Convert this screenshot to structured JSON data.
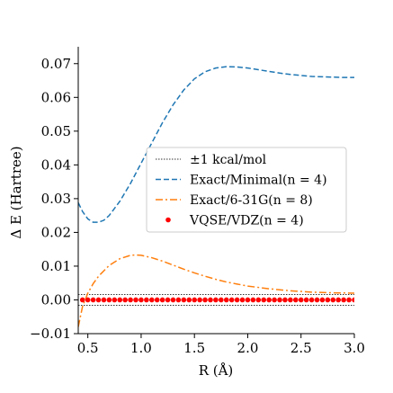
{
  "chart_data": {
    "type": "line",
    "xlabel": "R (Å)",
    "ylabel": "Δ E (Hartree)",
    "xlim": [
      0.41,
      3.0
    ],
    "ylim": [
      -0.01,
      0.075
    ],
    "xticks": [
      0.5,
      1.0,
      1.5,
      2.0,
      2.5,
      3.0
    ],
    "xtick_labels": [
      "0.5",
      "1.0",
      "1.5",
      "2.0",
      "2.5",
      "3.0"
    ],
    "yticks": [
      -0.01,
      0.0,
      0.01,
      0.02,
      0.03,
      0.04,
      0.05,
      0.06,
      0.07
    ],
    "ytick_labels": [
      "−0.01",
      "0.00",
      "0.01",
      "0.02",
      "0.03",
      "0.04",
      "0.05",
      "0.06",
      "0.07"
    ],
    "grid": false,
    "legend_position": "center-right",
    "series": [
      {
        "name": "±1 kcal/mol",
        "style": "dotted",
        "color": "#333333",
        "lines": [
          0.0016,
          -0.0016
        ],
        "x": [
          0.41,
          3.0
        ]
      },
      {
        "name": "Exact/Minimal(n = 4)",
        "style": "dashed",
        "color": "#1f77b4",
        "x": [
          0.41,
          0.45,
          0.5,
          0.55,
          0.6,
          0.65,
          0.7,
          0.8,
          0.9,
          1.0,
          1.1,
          1.2,
          1.3,
          1.4,
          1.5,
          1.6,
          1.7,
          1.8,
          1.9,
          2.0,
          2.1,
          2.2,
          2.3,
          2.4,
          2.5,
          2.6,
          2.7,
          2.8,
          2.9,
          3.0
        ],
        "y": [
          0.0288,
          0.0262,
          0.024,
          0.023,
          0.023,
          0.0236,
          0.025,
          0.0292,
          0.0345,
          0.0405,
          0.0465,
          0.0525,
          0.0578,
          0.0622,
          0.0655,
          0.0676,
          0.0687,
          0.0691,
          0.069,
          0.0687,
          0.0682,
          0.0677,
          0.0672,
          0.0668,
          0.0665,
          0.0662,
          0.0661,
          0.066,
          0.0659,
          0.0659
        ]
      },
      {
        "name": "Exact/6-31G(n = 8)",
        "style": "dashdot",
        "color": "#ff7f0e",
        "x": [
          0.41,
          0.45,
          0.5,
          0.55,
          0.6,
          0.7,
          0.8,
          0.9,
          0.95,
          1.0,
          1.1,
          1.2,
          1.3,
          1.4,
          1.5,
          1.6,
          1.7,
          1.8,
          1.9,
          2.0,
          2.2,
          2.4,
          2.6,
          2.8,
          3.0
        ],
        "y": [
          -0.008,
          -0.002,
          0.002,
          0.0048,
          0.007,
          0.0102,
          0.0122,
          0.0132,
          0.0133,
          0.0132,
          0.0125,
          0.0115,
          0.0103,
          0.0091,
          0.008,
          0.007,
          0.0061,
          0.0053,
          0.0047,
          0.0041,
          0.0033,
          0.0027,
          0.0023,
          0.0021,
          0.002
        ]
      },
      {
        "name": "VQSE/VDZ(n = 4)",
        "style": "markers",
        "color": "#ff0000",
        "x_start": 0.45,
        "x_step": 0.05,
        "x_end": 3.0,
        "y_value": 0.0
      }
    ]
  }
}
